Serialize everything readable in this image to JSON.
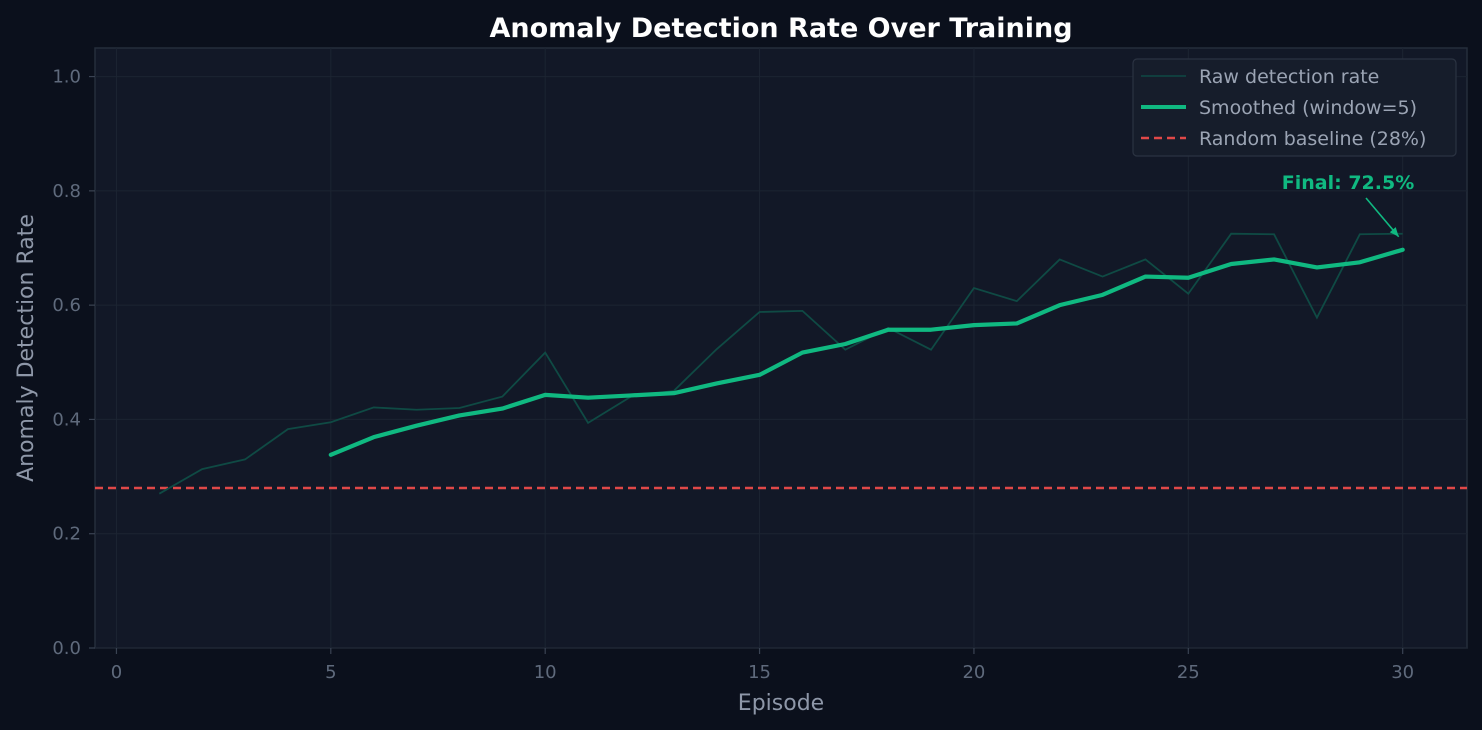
{
  "chart_data": {
    "type": "line",
    "title": "Anomaly Detection Rate Over Training",
    "xlabel": "Episode",
    "ylabel": "Anomaly Detection Rate",
    "xlim": [
      -0.5,
      31.5
    ],
    "ylim": [
      0.0,
      1.05
    ],
    "xticks": [
      0,
      5,
      10,
      15,
      20,
      25,
      30
    ],
    "yticks": [
      0.0,
      0.2,
      0.4,
      0.6,
      0.8,
      1.0
    ],
    "grid": true,
    "legend_position": "top-right",
    "series": [
      {
        "name": "Raw detection rate",
        "color": "#0f4a44",
        "style": "thin",
        "x": [
          1,
          2,
          3,
          4,
          5,
          6,
          7,
          8,
          9,
          10,
          11,
          12,
          13,
          14,
          15,
          16,
          17,
          18,
          19,
          20,
          21,
          22,
          23,
          24,
          25,
          26,
          27,
          28,
          29,
          30
        ],
        "values": [
          0.27,
          0.313,
          0.33,
          0.383,
          0.395,
          0.421,
          0.417,
          0.42,
          0.44,
          0.517,
          0.394,
          0.44,
          0.45,
          0.523,
          0.588,
          0.59,
          0.522,
          0.56,
          0.522,
          0.63,
          0.607,
          0.68,
          0.65,
          0.68,
          0.62,
          0.725,
          0.724,
          0.578,
          0.724,
          0.725
        ]
      },
      {
        "name": "Smoothed (window=5)",
        "color": "#10b981",
        "style": "thick",
        "x": [
          5,
          6,
          7,
          8,
          9,
          10,
          11,
          12,
          13,
          14,
          15,
          16,
          17,
          18,
          19,
          20,
          21,
          22,
          23,
          24,
          25,
          26,
          27,
          28,
          29,
          30
        ],
        "values": [
          0.338,
          0.369,
          0.389,
          0.407,
          0.419,
          0.443,
          0.438,
          0.442,
          0.446,
          0.463,
          0.478,
          0.517,
          0.532,
          0.557,
          0.557,
          0.565,
          0.568,
          0.6,
          0.618,
          0.65,
          0.648,
          0.672,
          0.68,
          0.666,
          0.675,
          0.697
        ]
      },
      {
        "name": "Random baseline (28%)",
        "color": "#e04848",
        "style": "dashed",
        "baseline": 0.28
      }
    ],
    "annotation": {
      "text": "Final: 72.5%",
      "x": 30,
      "y": 0.725,
      "color": "#10b981"
    }
  }
}
